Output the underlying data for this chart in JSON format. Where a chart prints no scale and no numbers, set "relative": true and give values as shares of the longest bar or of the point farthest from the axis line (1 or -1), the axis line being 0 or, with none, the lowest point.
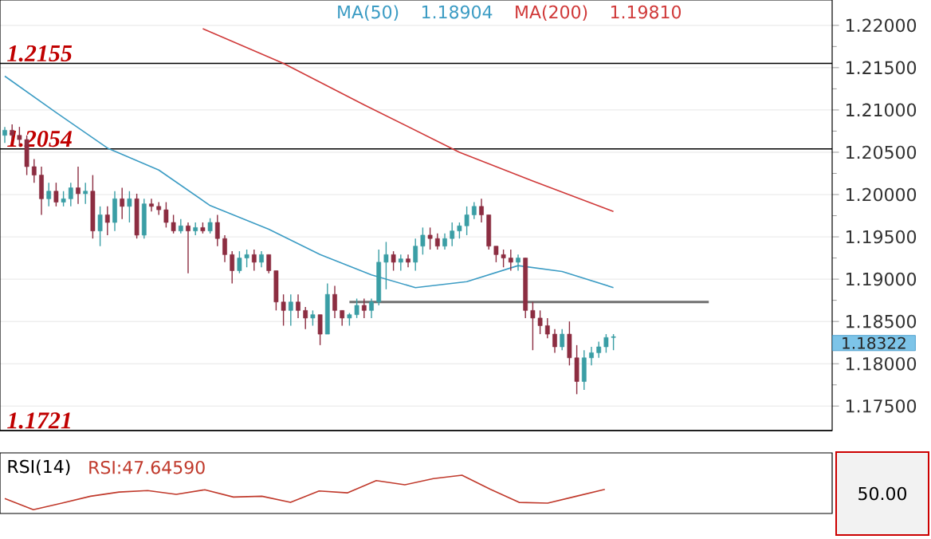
{
  "chart_data": [
    {
      "type": "candlestick",
      "categories": [
        null,
        null,
        null,
        null,
        null,
        null,
        null,
        null,
        null,
        null,
        null,
        null,
        null,
        null,
        null,
        null,
        null,
        null,
        null,
        null,
        null,
        null,
        null,
        null,
        null,
        null,
        null,
        null,
        null,
        null,
        null,
        null,
        null,
        null,
        null,
        null,
        null,
        null,
        null,
        null,
        null,
        null,
        null,
        null,
        null,
        null,
        null,
        null,
        null,
        null,
        null,
        null,
        null,
        null,
        null,
        null,
        null,
        null,
        null,
        null,
        null,
        null,
        null,
        null,
        null,
        null,
        null,
        null,
        null,
        null,
        null,
        null,
        null,
        null,
        null,
        null,
        null,
        null,
        null,
        null,
        null,
        null,
        null,
        null,
        null,
        null,
        null,
        null,
        null,
        null,
        null,
        null,
        null,
        null,
        null,
        null,
        null,
        null,
        null,
        null,
        null,
        null,
        null,
        null,
        null,
        null,
        null,
        null,
        null,
        null,
        null,
        null,
        null
      ],
      "ohlc": [
        [
          1.207,
          1.208,
          1.2061,
          1.2076
        ],
        [
          1.2076,
          1.2083,
          1.2065,
          1.207
        ],
        [
          1.207,
          1.208,
          1.2057,
          1.2065
        ],
        [
          1.2065,
          1.207,
          1.2023,
          1.2033
        ],
        [
          1.2033,
          1.2042,
          1.2014,
          1.2023
        ],
        [
          1.2023,
          1.2033,
          1.1976,
          1.1995
        ],
        [
          1.1995,
          1.2014,
          1.1986,
          1.2004
        ],
        [
          1.2004,
          1.2014,
          1.1986,
          1.1991
        ],
        [
          1.1991,
          1.2004,
          1.1986,
          1.1995
        ],
        [
          1.1995,
          1.2014,
          1.1986,
          1.2008
        ],
        [
          1.2008,
          1.2033,
          1.1989,
          1.2001
        ],
        [
          1.2001,
          1.2014,
          1.1989,
          1.2004
        ],
        [
          1.2004,
          1.2023,
          1.1948,
          1.1957
        ],
        [
          1.1957,
          1.1986,
          1.1939,
          1.1976
        ],
        [
          1.1976,
          1.1986,
          1.1952,
          1.1967
        ],
        [
          1.1967,
          1.2004,
          1.1957,
          1.1995
        ],
        [
          1.1995,
          1.2008,
          1.1971,
          1.1986
        ],
        [
          1.1986,
          1.2004,
          1.1967,
          1.1995
        ],
        [
          1.1995,
          1.2001,
          1.1948,
          1.1952
        ],
        [
          1.1952,
          1.1995,
          1.1948,
          1.1989
        ],
        [
          1.1989,
          1.1995,
          1.198,
          1.1986
        ],
        [
          1.1986,
          1.1991,
          1.1976,
          1.1982
        ],
        [
          1.1982,
          1.1991,
          1.1961,
          1.1967
        ],
        [
          1.1967,
          1.1976,
          1.1954,
          1.1957
        ],
        [
          1.1957,
          1.1971,
          1.1954,
          1.1963
        ],
        [
          1.1963,
          1.1967,
          1.1907,
          1.1957
        ],
        [
          1.1957,
          1.1967,
          1.1952,
          1.1961
        ],
        [
          1.1961,
          1.1967,
          1.1954,
          1.1957
        ],
        [
          1.1957,
          1.1972,
          1.1954,
          1.1967
        ],
        [
          1.1967,
          1.1976,
          1.1939,
          1.1948
        ],
        [
          1.1948,
          1.1952,
          1.192,
          1.1929
        ],
        [
          1.1929,
          1.1933,
          1.1895,
          1.191
        ],
        [
          1.191,
          1.1933,
          1.1907,
          1.1925
        ],
        [
          1.1925,
          1.1935,
          1.1914,
          1.1929
        ],
        [
          1.1929,
          1.1935,
          1.191,
          1.192
        ],
        [
          1.192,
          1.1933,
          1.1914,
          1.1929
        ],
        [
          1.1929,
          1.1929,
          1.1907,
          1.191
        ],
        [
          1.191,
          1.191,
          1.1863,
          1.1873
        ],
        [
          1.1873,
          1.1882,
          1.1845,
          1.1863
        ],
        [
          1.1863,
          1.1882,
          1.1845,
          1.1873
        ],
        [
          1.1873,
          1.1882,
          1.1854,
          1.1863
        ],
        [
          1.1863,
          1.1867,
          1.1841,
          1.1854
        ],
        [
          1.1854,
          1.1863,
          1.1845,
          1.1858
        ],
        [
          1.1858,
          1.1858,
          1.1822,
          1.1835
        ],
        [
          1.1835,
          1.1895,
          1.1835,
          1.1882
        ],
        [
          1.1882,
          1.1892,
          1.1854,
          1.1863
        ],
        [
          1.1863,
          1.1863,
          1.1845,
          1.1854
        ],
        [
          1.1854,
          1.186,
          1.1845,
          1.1858
        ],
        [
          1.1858,
          1.1877,
          1.1854,
          1.1869
        ],
        [
          1.1869,
          1.1877,
          1.1854,
          1.1863
        ],
        [
          1.1863,
          1.1877,
          1.1854,
          1.1873
        ],
        [
          1.1873,
          1.1935,
          1.1869,
          1.192
        ],
        [
          1.192,
          1.1944,
          1.1888,
          1.1929
        ],
        [
          1.1929,
          1.1933,
          1.191,
          1.192
        ],
        [
          1.192,
          1.1929,
          1.191,
          1.1924
        ],
        [
          1.1924,
          1.1929,
          1.1914,
          1.192
        ],
        [
          1.192,
          1.1948,
          1.191,
          1.1939
        ],
        [
          1.1939,
          1.1961,
          1.1929,
          1.1952
        ],
        [
          1.1952,
          1.1961,
          1.1935,
          1.1948
        ],
        [
          1.1948,
          1.1954,
          1.1935,
          1.1939
        ],
        [
          1.1939,
          1.1954,
          1.1935,
          1.1948
        ],
        [
          1.1948,
          1.1967,
          1.1939,
          1.1957
        ],
        [
          1.1957,
          1.1967,
          1.1948,
          1.1963
        ],
        [
          1.1963,
          1.1986,
          1.1952,
          1.1976
        ],
        [
          1.1976,
          1.1991,
          1.1971,
          1.1986
        ],
        [
          1.1986,
          1.1995,
          1.1967,
          1.1976
        ],
        [
          1.1976,
          1.1976,
          1.1935,
          1.1939
        ],
        [
          1.1939,
          1.1939,
          1.192,
          1.1929
        ],
        [
          1.1929,
          1.1935,
          1.1914,
          1.1925
        ],
        [
          1.1925,
          1.1935,
          1.191,
          1.192
        ],
        [
          1.192,
          1.1929,
          1.191,
          1.1925
        ],
        [
          1.1925,
          1.1925,
          1.1854,
          1.1863
        ],
        [
          1.1863,
          1.1873,
          1.1816,
          1.1854
        ],
        [
          1.1854,
          1.1863,
          1.1835,
          1.1845
        ],
        [
          1.1845,
          1.1854,
          1.183,
          1.1835
        ],
        [
          1.1835,
          1.1841,
          1.1813,
          1.182
        ],
        [
          1.182,
          1.1841,
          1.1816,
          1.1835
        ],
        [
          1.1835,
          1.185,
          1.1798,
          1.1807
        ],
        [
          1.1807,
          1.1822,
          1.1764,
          1.1779
        ],
        [
          1.1779,
          1.1816,
          1.1769,
          1.1807
        ],
        [
          1.1807,
          1.182,
          1.1798,
          1.1813
        ],
        [
          1.1813,
          1.1826,
          1.1807,
          1.182
        ],
        [
          1.182,
          1.1835,
          1.1813,
          1.1831
        ],
        [
          1.1831,
          1.1835,
          1.1816,
          1.1832
        ],
        null,
        null,
        null,
        null,
        null,
        null,
        null,
        null,
        null,
        null,
        null,
        null,
        null,
        null,
        null,
        null,
        null,
        null,
        null,
        null,
        null,
        null,
        null,
        null,
        null,
        null,
        null,
        null,
        null
      ],
      "colors": [
        "#3a9ea5",
        "#8c2d41",
        "#8c2d41",
        "#8c2d41",
        "#8c2d41",
        "#8c2d41",
        "#3a9ea5",
        "#8c2d41",
        "#3a9ea5",
        "#3a9ea5",
        "#8c2d41",
        "#3a9ea5",
        "#8c2d41",
        "#3a9ea5",
        "#8c2d41",
        "#3a9ea5",
        "#8c2d41",
        "#3a9ea5",
        "#8c2d41",
        "#3a9ea5",
        "#8c2d41",
        "#8c2d41",
        "#8c2d41",
        "#8c2d41",
        "#3a9ea5",
        "#8c2d41",
        "#3a9ea5",
        "#8c2d41",
        "#3a9ea5",
        "#8c2d41",
        "#8c2d41",
        "#8c2d41",
        "#3a9ea5",
        "#3a9ea5",
        "#8c2d41",
        "#3a9ea5",
        "#8c2d41",
        "#8c2d41",
        "#8c2d41",
        "#3a9ea5",
        "#8c2d41",
        "#8c2d41",
        "#3a9ea5",
        "#8c2d41",
        "#3a9ea5",
        "#8c2d41",
        "#8c2d41",
        "#3a9ea5",
        "#3a9ea5",
        "#8c2d41",
        "#3a9ea5",
        "#3a9ea5",
        "#3a9ea5",
        "#8c2d41",
        "#3a9ea5",
        "#8c2d41",
        "#3a9ea5",
        "#3a9ea5",
        "#8c2d41",
        "#8c2d41",
        "#3a9ea5",
        "#3a9ea5",
        "#3a9ea5",
        "#3a9ea5",
        "#3a9ea5",
        "#8c2d41",
        "#8c2d41",
        "#8c2d41",
        "#8c2d41",
        "#8c2d41",
        "#3a9ea5",
        "#8c2d41",
        "#8c2d41",
        "#8c2d41",
        "#8c2d41",
        "#8c2d41",
        "#3a9ea5",
        "#8c2d41",
        "#8c2d41",
        "#3a9ea5",
        "#3a9ea5",
        "#3a9ea5",
        "#3a9ea5",
        "#3a9ea5",
        null,
        null,
        null,
        null,
        null,
        null,
        null,
        null,
        null,
        null,
        null,
        null,
        null,
        null,
        null,
        null,
        null,
        null,
        null,
        null,
        null,
        null,
        null,
        null,
        null,
        null,
        null,
        null,
        null
      ],
      "series": [
        {
          "type": "line",
          "name": "MA(50)",
          "color": "#3c9cc4",
          "values": [
            1.214,
            null,
            null,
            null,
            null,
            null,
            null,
            1.2097,
            null,
            null,
            null,
            null,
            null,
            null,
            1.2055,
            null,
            null,
            null,
            null,
            null,
            null,
            1.2029,
            null,
            null,
            null,
            null,
            null,
            null,
            1.1987,
            null,
            null,
            null,
            null,
            null,
            null,
            null,
            1.1959,
            null,
            null,
            null,
            null,
            null,
            null,
            1.1929,
            null,
            null,
            null,
            null,
            null,
            null,
            1.1905,
            null,
            null,
            null,
            null,
            null,
            1.189,
            null,
            null,
            null,
            null,
            null,
            null,
            1.1897,
            null,
            null,
            null,
            null,
            null,
            null,
            1.1916,
            null,
            null,
            null,
            null,
            null,
            1.1909,
            null,
            null,
            null,
            null,
            null,
            null,
            1.189,
            null,
            null,
            null,
            null,
            null,
            null,
            null,
            null,
            null,
            null,
            null,
            null,
            null,
            null,
            null,
            null,
            null,
            null,
            null,
            null,
            null,
            null,
            null,
            null,
            null,
            null,
            null,
            null,
            null
          ]
        },
        {
          "type": "line",
          "name": "MA(200)",
          "color": "#d03a3a",
          "values": [
            null,
            null,
            null,
            null,
            null,
            null,
            null,
            null,
            null,
            null,
            null,
            null,
            null,
            null,
            null,
            null,
            null,
            null,
            null,
            null,
            null,
            null,
            null,
            null,
            null,
            null,
            null,
            1.2196,
            null,
            null,
            null,
            null,
            null,
            null,
            null,
            null,
            null,
            null,
            1.2155,
            null,
            null,
            null,
            null,
            null,
            null,
            null,
            null,
            null,
            null,
            1.2106,
            null,
            null,
            null,
            null,
            null,
            null,
            null,
            null,
            null,
            null,
            null,
            null,
            1.205,
            null,
            null,
            null,
            null,
            null,
            null,
            null,
            null,
            null,
            1.2016,
            null,
            null,
            null,
            null,
            null,
            null,
            null,
            null,
            null,
            null,
            1.198,
            null,
            null,
            null,
            null,
            null,
            null,
            null,
            null,
            null,
            null,
            null,
            null,
            null,
            null,
            null,
            null,
            null,
            null,
            null,
            null,
            null,
            null,
            null,
            null,
            null,
            null,
            null,
            null,
            null
          ]
        },
        {
          "type": "line",
          "color": "#707070",
          "values": [
            null,
            null,
            null,
            null,
            null,
            null,
            null,
            null,
            null,
            null,
            null,
            null,
            null,
            null,
            null,
            null,
            null,
            null,
            null,
            null,
            null,
            null,
            null,
            null,
            null,
            null,
            null,
            null,
            null,
            null,
            null,
            null,
            null,
            null,
            null,
            null,
            null,
            null,
            null,
            null,
            null,
            null,
            null,
            null,
            null,
            null,
            null,
            1.1873,
            null,
            null,
            null,
            null,
            null,
            null,
            null,
            null,
            null,
            null,
            null,
            null,
            null,
            null,
            null,
            null,
            null,
            null,
            null,
            null,
            null,
            null,
            null,
            null,
            null,
            null,
            null,
            null,
            null,
            null,
            null,
            null,
            null,
            null,
            null,
            null,
            null,
            null,
            null,
            null,
            null,
            null,
            null,
            null,
            null,
            null,
            null,
            null,
            1.1873,
            null,
            null,
            null,
            null,
            null,
            null,
            null,
            null,
            null,
            null,
            null,
            null,
            null,
            null,
            null,
            null
          ]
        }
      ],
      "annotations": [
        "1.18904",
        "1.19810",
        "1.18322"
      ],
      "ylim": [
        1.1721,
        1.223
      ],
      "yticks": [
        {
          "value": 1.175,
          "label": "1.17500"
        },
        {
          "value": 1.18,
          "label": "1.18000"
        },
        {
          "value": 1.185,
          "label": "1.18500"
        },
        {
          "value": 1.19,
          "label": "1.19000"
        },
        {
          "value": 1.195,
          "label": "1.19500"
        },
        {
          "value": 1.2,
          "label": "1.20000"
        },
        {
          "value": 1.205,
          "label": "1.20500"
        },
        {
          "value": 1.21,
          "label": "1.21000"
        },
        {
          "value": 1.215,
          "label": "1.21500"
        },
        {
          "value": 1.22,
          "label": "1.22000"
        }
      ],
      "ref_lines": [
        {
          "axis": "y",
          "value": 1.2155,
          "label": "1.2155",
          "color": "#000000"
        },
        {
          "axis": "y",
          "value": 1.2054,
          "label": "1.2054",
          "color": "#000000"
        },
        {
          "axis": "y",
          "value": 1.1721,
          "label": "1.1721",
          "color": "#000000"
        }
      ],
      "grid": "y"
    },
    {
      "type": "line",
      "title": "RSI(14)",
      "relative": true,
      "categories": [
        null,
        null,
        null,
        null,
        null,
        null,
        null,
        null,
        null,
        null,
        null,
        null,
        null,
        null,
        null,
        null,
        null,
        null,
        null,
        null,
        null,
        null,
        null,
        null,
        null,
        null,
        null,
        null,
        null
      ],
      "series": [
        {
          "name": "RSI:47.64590",
          "color": "#c0392b",
          "values": [
            0.39,
            0.1,
            0.27,
            0.45,
            0.56,
            0.6,
            0.5,
            0.62,
            0.43,
            0.45,
            0.29,
            0.59,
            0.54,
            0.86,
            0.75,
            0.91,
            1.0,
            0.63,
            0.29,
            0.27,
            0.45,
            0.63,
            null,
            null,
            null,
            null,
            null,
            null,
            null
          ]
        }
      ],
      "annotations": [
        "50.00"
      ],
      "legend": "top left"
    }
  ]
}
